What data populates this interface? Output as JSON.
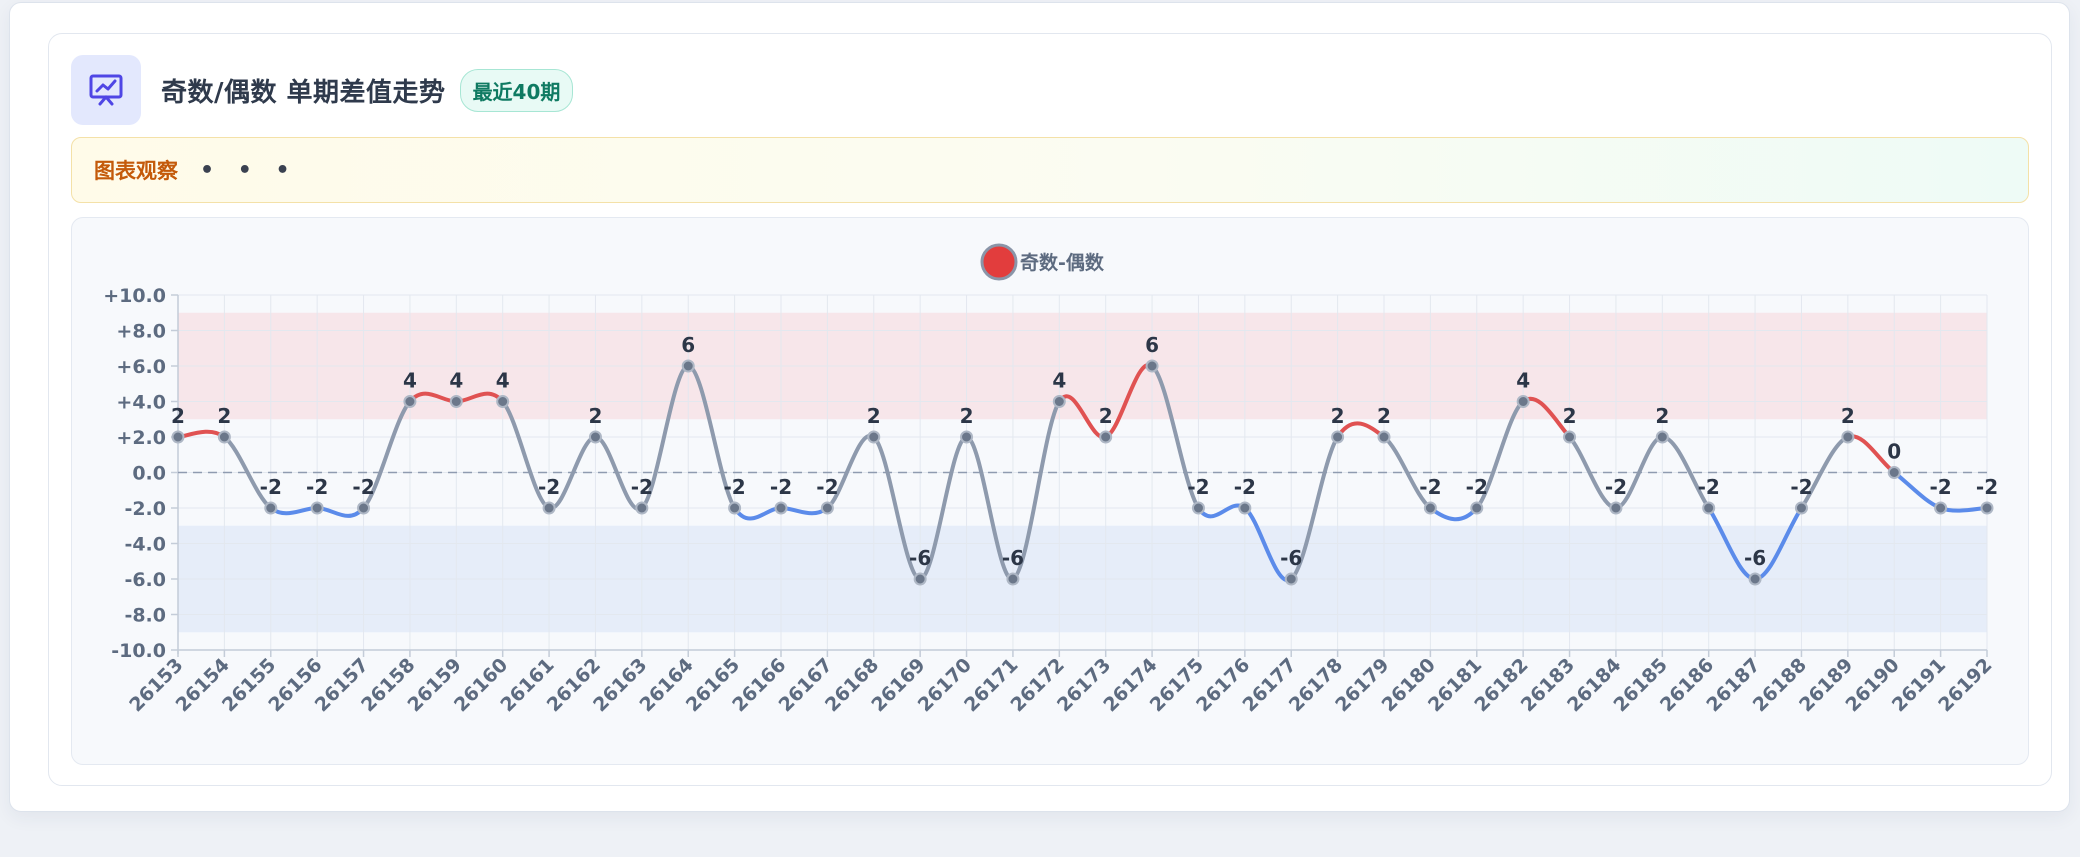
{
  "header": {
    "title": "奇数/偶数 单期差值走势",
    "badge": "最近40期",
    "icon": "presentation-chart-icon"
  },
  "observation": {
    "label": "图表观察",
    "dots": "• • •"
  },
  "colors": {
    "positive": "#e05252",
    "negative": "#5b8bea",
    "neutral": "#8e9aad",
    "point": "#6b778a",
    "high_band": "#f7e6ea",
    "low_band": "#e6edf9",
    "zero_line": "#8f9bb0",
    "grid": "#e3e8ef",
    "legend_fill": "#e23d3d",
    "legend_stroke": "#8a95a8"
  },
  "chart_data": {
    "type": "line",
    "legend": "奇数-偶数",
    "legend_position": "top-center",
    "x": [
      "26153",
      "26154",
      "26155",
      "26156",
      "26157",
      "26158",
      "26159",
      "26160",
      "26161",
      "26162",
      "26163",
      "26164",
      "26165",
      "26166",
      "26167",
      "26168",
      "26169",
      "26170",
      "26171",
      "26172",
      "26173",
      "26174",
      "26175",
      "26176",
      "26177",
      "26178",
      "26179",
      "26180",
      "26181",
      "26182",
      "26183",
      "26184",
      "26185",
      "26186",
      "26187",
      "26188",
      "26189",
      "26190",
      "26191",
      "26192"
    ],
    "series": [
      {
        "name": "奇数-偶数",
        "values": [
          2,
          2,
          -2,
          -2,
          -2,
          4,
          4,
          4,
          -2,
          2,
          -2,
          6,
          -2,
          -2,
          -2,
          2,
          -6,
          2,
          -6,
          4,
          2,
          6,
          -2,
          -2,
          -6,
          2,
          2,
          -2,
          -2,
          4,
          2,
          -2,
          2,
          -2,
          -6,
          -2,
          2,
          0,
          -2,
          -2
        ]
      }
    ],
    "data_labels": [
      "2",
      "2",
      "-2",
      "-2",
      "-2",
      "4",
      "4",
      "4",
      "-2",
      "2",
      "-2",
      "6",
      "-2",
      "-2",
      "-2",
      "2",
      "-6",
      "2",
      "-6",
      "4",
      "2",
      "6",
      "-2",
      "-2",
      "-6",
      "2",
      "2",
      "-2",
      "-2",
      "4",
      "2",
      "-2",
      "2",
      "-2",
      "-6",
      "-2",
      "2",
      "0",
      "-2",
      "-2"
    ],
    "ylim": [
      -10,
      10
    ],
    "y_ticks": [
      10,
      8,
      6,
      4,
      2,
      0,
      -2,
      -4,
      -6,
      -8,
      -10
    ],
    "y_tick_labels": [
      "+10.0",
      "+8.0",
      "+6.0",
      "+4.0",
      "+2.0",
      "0.0",
      "-2.0",
      "-4.0",
      "-6.0",
      "-8.0",
      "-10.0"
    ],
    "bands": [
      {
        "from": 3,
        "to": 9,
        "kind": "high"
      },
      {
        "from": -9,
        "to": -3,
        "kind": "low"
      }
    ],
    "zero_reference": 0,
    "grid": true
  }
}
